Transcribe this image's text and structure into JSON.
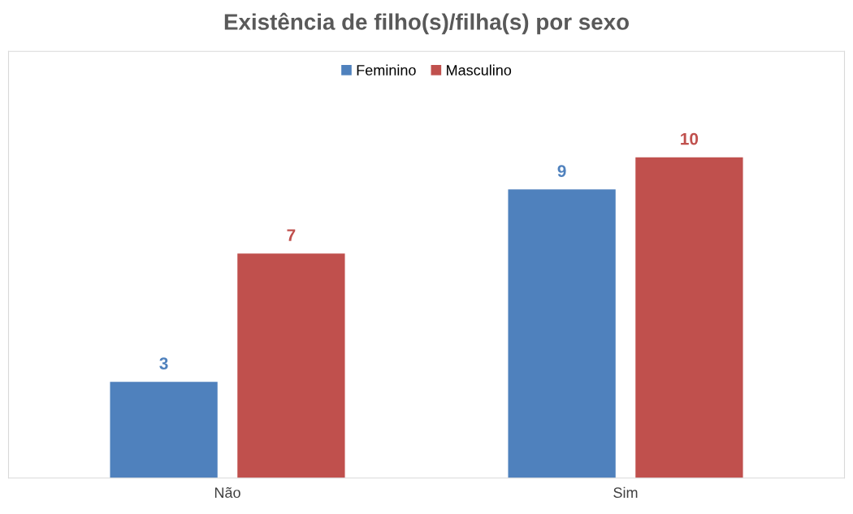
{
  "chart_data": {
    "type": "bar",
    "title": "Existência de filho(s)/filha(s) por sexo",
    "categories": [
      "Não",
      "Sim"
    ],
    "series": [
      {
        "name": "Feminino",
        "color": "#4f81bd",
        "values": [
          3,
          9
        ]
      },
      {
        "name": "Masculino",
        "color": "#c0504d",
        "values": [
          7,
          10
        ]
      }
    ],
    "data_labels": true,
    "legend": "top",
    "grid": false
  }
}
